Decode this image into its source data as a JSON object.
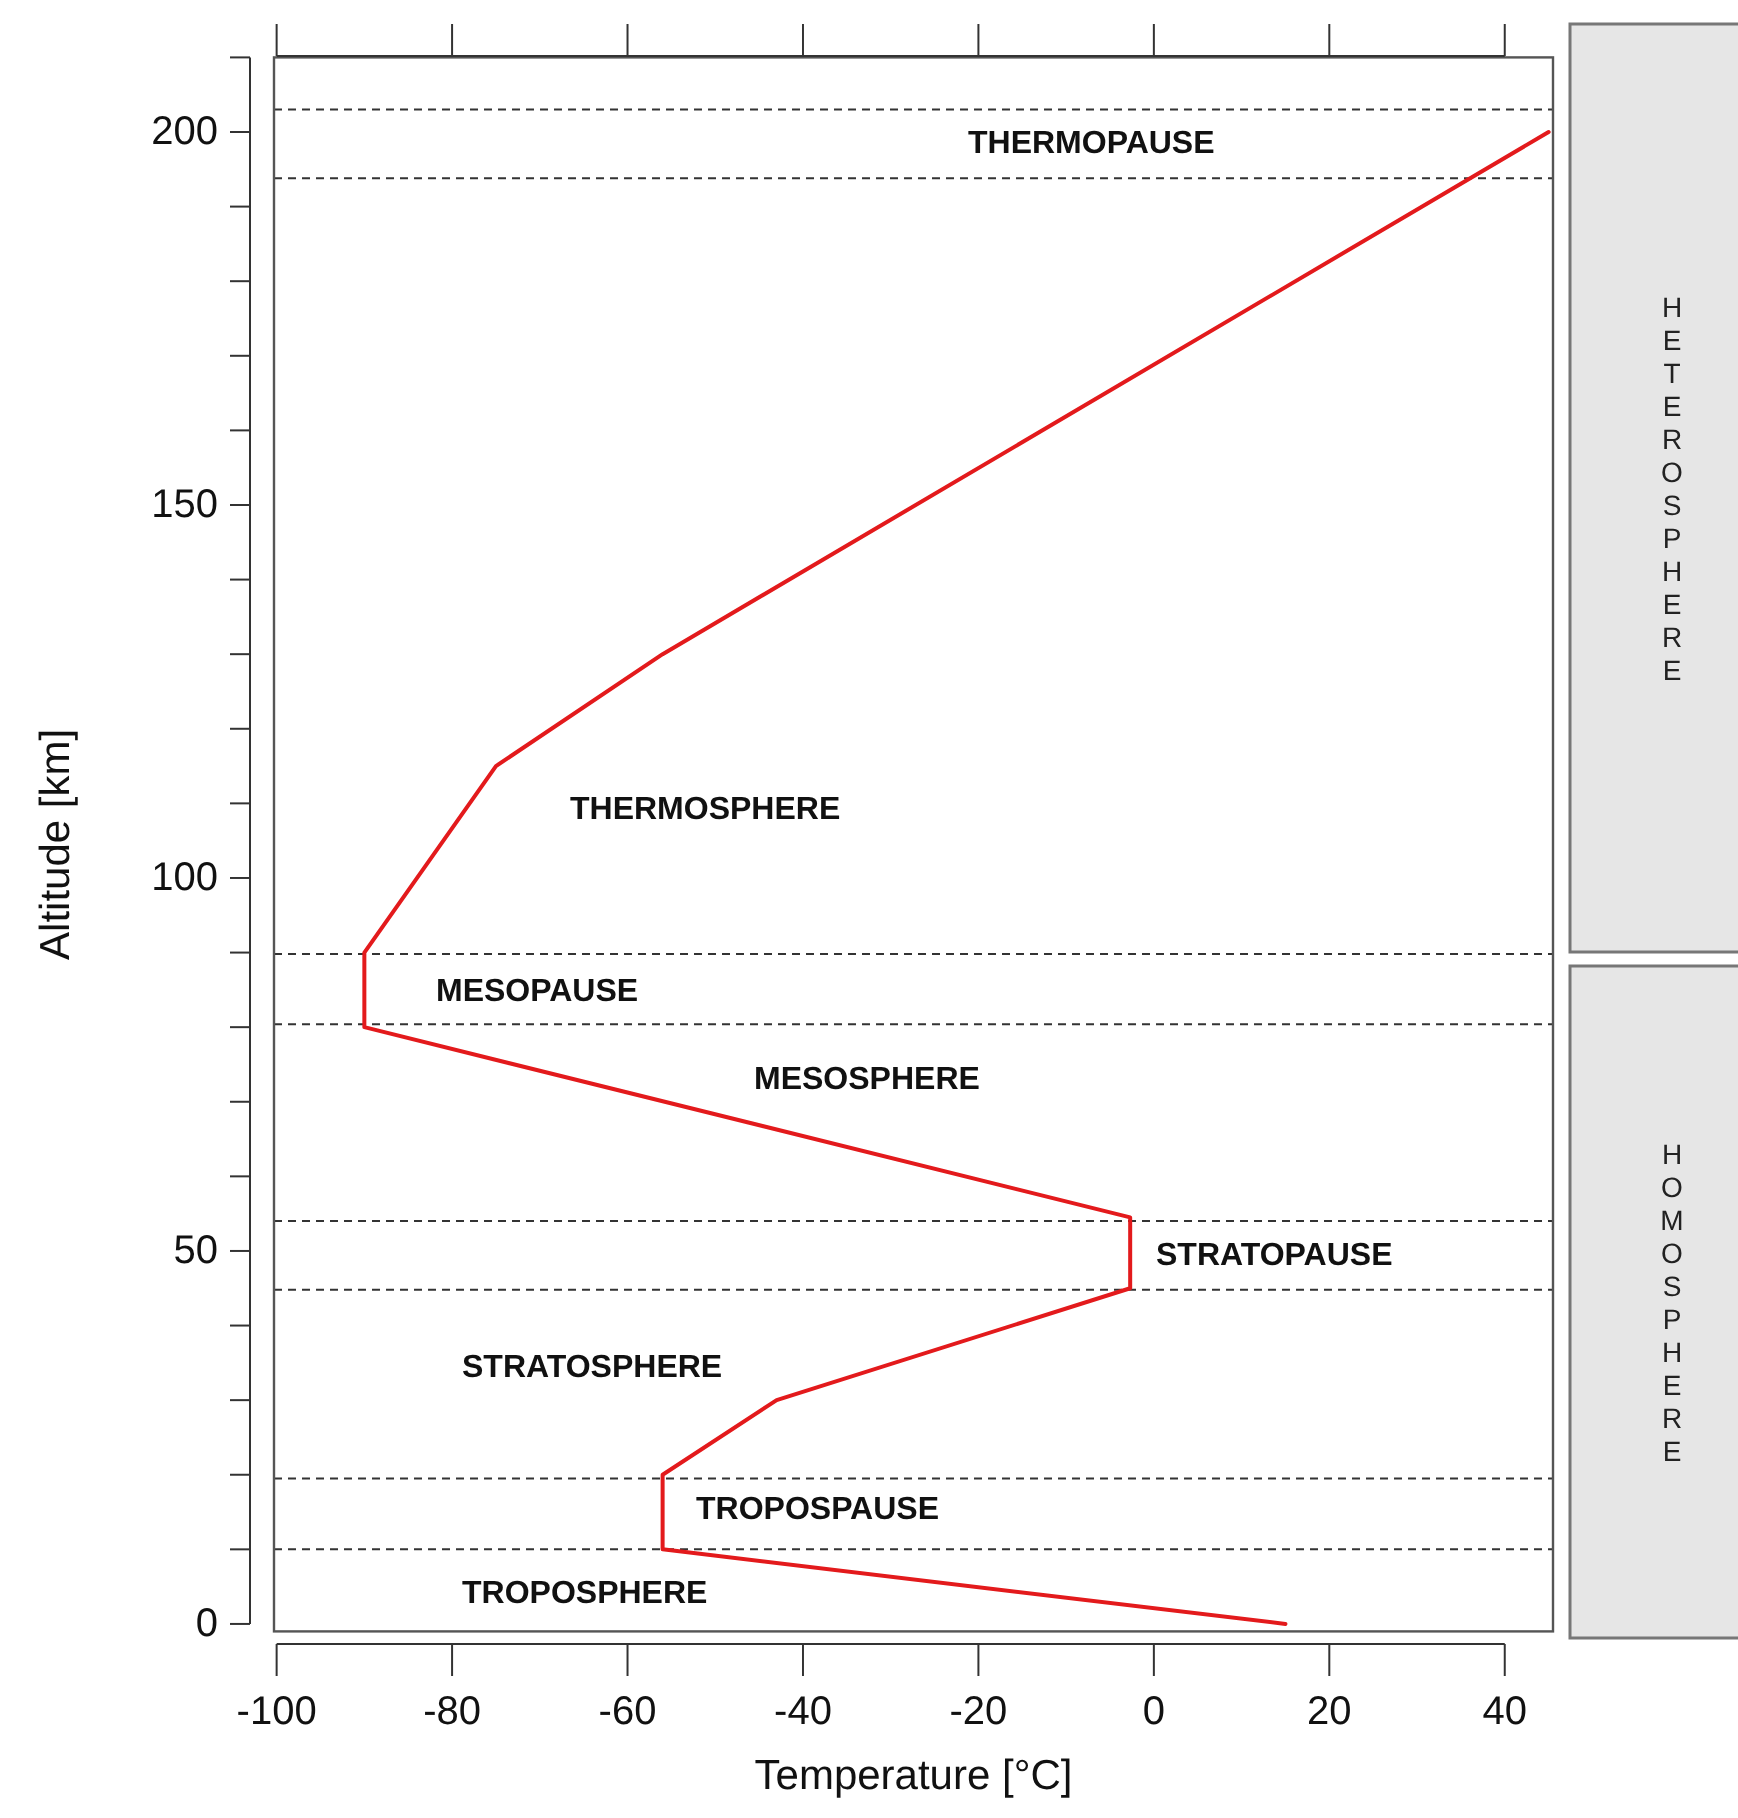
{
  "chart_data": {
    "type": "line",
    "xlabel": "Temperature [°C]",
    "ylabel": "Altitude [km]",
    "series": [
      {
        "color": "#e31a1c",
        "x": [
          15,
          -56,
          -56,
          -43,
          -2.7,
          -2.7,
          -90,
          -90,
          -75,
          -56,
          45
        ],
        "values": [
          0,
          10,
          20,
          30,
          45,
          54.5,
          80,
          90,
          115,
          130,
          200
        ]
      }
    ],
    "xlim": [
      -100.3,
      45.5
    ],
    "xticks": [
      -100,
      -80,
      -60,
      -40,
      -20,
      0,
      20,
      40
    ],
    "ylim": [
      -1,
      210
    ],
    "yticks": [
      0,
      {
        "value": 10,
        "label": null
      },
      {
        "value": 20,
        "label": null
      },
      {
        "value": 30,
        "label": null
      },
      {
        "value": 40,
        "label": null
      },
      50,
      {
        "value": 60,
        "label": null
      },
      {
        "value": 70,
        "label": null
      },
      {
        "value": 80,
        "label": null
      },
      {
        "value": 90,
        "label": null
      },
      100,
      {
        "value": 110,
        "label": null
      },
      {
        "value": 120,
        "label": null
      },
      {
        "value": 130,
        "label": null
      },
      {
        "value": 140,
        "label": null
      },
      150,
      {
        "value": 160,
        "label": null
      },
      {
        "value": 170,
        "label": null
      },
      {
        "value": 180,
        "label": null
      },
      {
        "value": 190,
        "label": null
      },
      200,
      {
        "value": 210,
        "label": null
      }
    ],
    "grid": false,
    "marker": "none",
    "line_style": "solid",
    "ref_lines": [
      {
        "axis": "y",
        "value": 10,
        "line_style": "dashed",
        "color": "#333333"
      },
      {
        "axis": "y",
        "value": 19.5,
        "line_style": "dashed",
        "color": "#333333"
      },
      {
        "axis": "y",
        "value": 44.8,
        "line_style": "dashed",
        "color": "#333333"
      },
      {
        "axis": "y",
        "value": 54,
        "line_style": "dashed",
        "color": "#333333"
      },
      {
        "axis": "y",
        "value": 80.4,
        "line_style": "dashed",
        "color": "#333333"
      },
      {
        "axis": "y",
        "value": 89.8,
        "line_style": "dashed",
        "color": "#333333"
      },
      {
        "axis": "y",
        "value": 193.8,
        "line_style": "dashed",
        "color": "#333333"
      },
      {
        "axis": "y",
        "value": 203,
        "line_style": "dashed",
        "color": "#333333"
      }
    ],
    "annotations": [
      "TROPOSPHERE",
      "TROPOSPAUSE",
      "STRATOSPHERE",
      "STRATOPAUSE",
      "MESOSPHERE",
      "MESOPAUSE",
      "THERMOSPHERE",
      "THERMOPAUSE",
      "HETEROSPHERE",
      "HOMOSPHERE"
    ]
  }
}
